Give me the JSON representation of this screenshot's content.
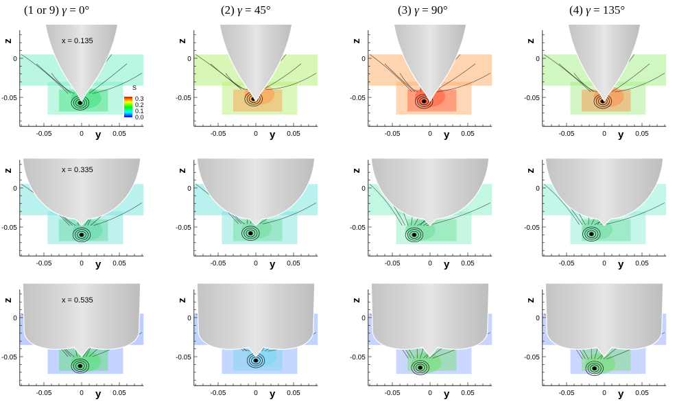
{
  "columns": [
    {
      "prefix": "(1 or 9) ",
      "angle": "0°"
    },
    {
      "prefix": "(2) ",
      "angle": "45°"
    },
    {
      "prefix": "(3) ",
      "angle": "90°"
    },
    {
      "prefix": "(4) ",
      "angle": "135°"
    }
  ],
  "gamma_symbol": "γ",
  "rows": [
    {
      "x_label": "x = 0.135"
    },
    {
      "x_label": "x = 0.335"
    },
    {
      "x_label": "x = 0.535"
    }
  ],
  "axes": {
    "y_name": "y",
    "z_name": "z",
    "y_ticks": [
      "-0.05",
      "0",
      "0.05"
    ],
    "z_ticks": [
      "0",
      "-0.05"
    ]
  },
  "colorbar": {
    "title": "S",
    "ticks": [
      "0.3",
      "0.2",
      "0.1",
      "0.0"
    ],
    "colors": [
      "#ff0000",
      "#ffff00",
      "#00ff00",
      "#00ffff",
      "#0000ff"
    ]
  }
}
